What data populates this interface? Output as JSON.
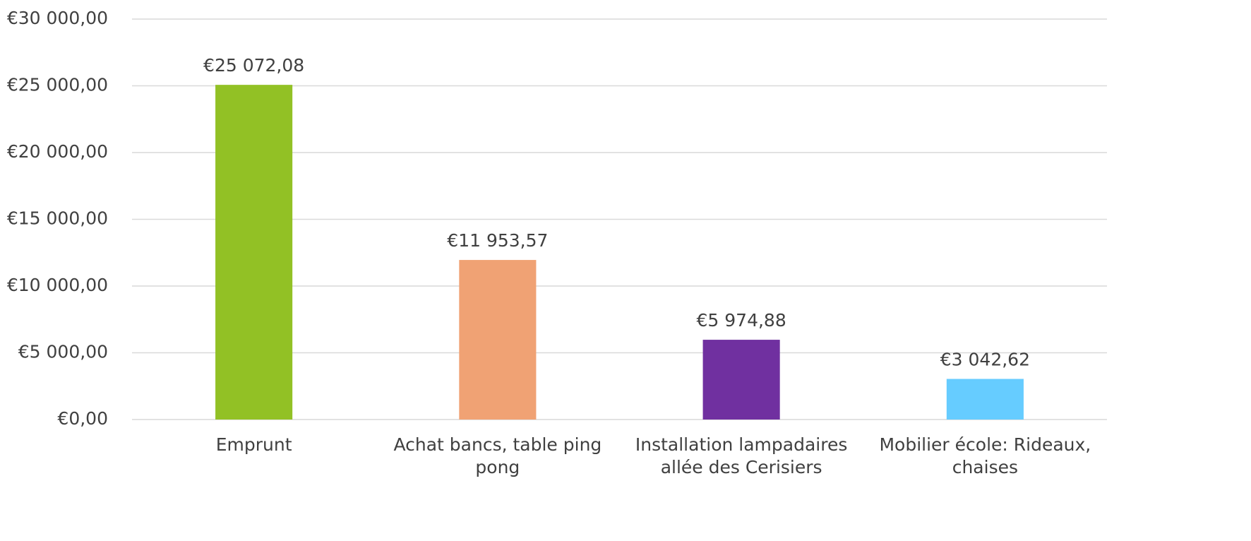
{
  "chart_data": {
    "type": "bar",
    "categories": [
      "Emprunt",
      "Achat bancs, table ping pong",
      "Installation lampadaires allée des Cerisiers",
      "Mobilier école: Rideaux, chaises"
    ],
    "values": [
      25072.08,
      11953.57,
      5974.88,
      3042.62
    ],
    "value_labels": [
      "€25 072,08",
      "€11 953,57",
      "€5 974,88",
      "€3 042,62"
    ],
    "colors": [
      "#92c125",
      "#f0a274",
      "#7030a0",
      "#66ccff"
    ],
    "ylim": [
      0,
      30000
    ],
    "yticks": [
      {
        "value": 0,
        "label": "€0,00"
      },
      {
        "value": 5000,
        "label": "€5 000,00"
      },
      {
        "value": 10000,
        "label": "€10 000,00"
      },
      {
        "value": 15000,
        "label": "€15 000,00"
      },
      {
        "value": 20000,
        "label": "€20 000,00"
      },
      {
        "value": 25000,
        "label": "€25 000,00"
      },
      {
        "value": 30000,
        "label": "€30 000,00"
      }
    ],
    "grid": true
  }
}
